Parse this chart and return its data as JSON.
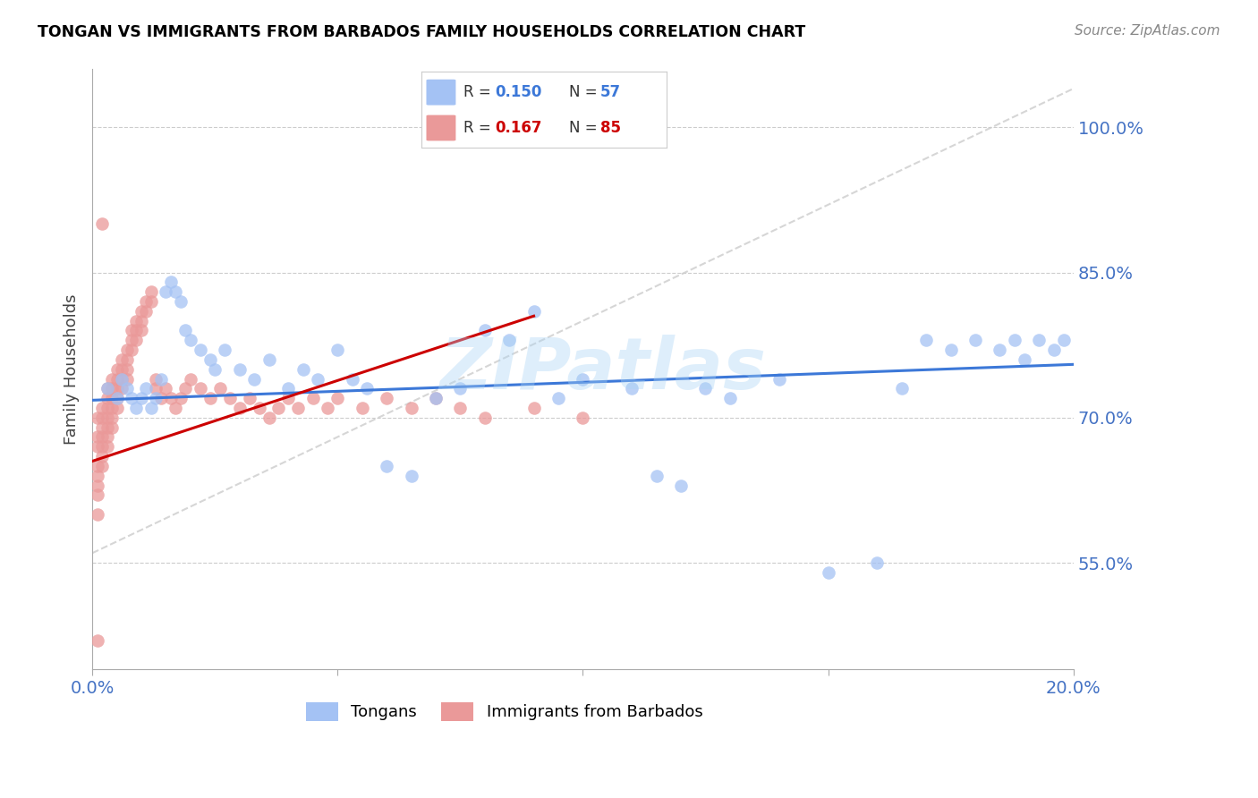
{
  "title": "TONGAN VS IMMIGRANTS FROM BARBADOS FAMILY HOUSEHOLDS CORRELATION CHART",
  "source": "Source: ZipAtlas.com",
  "ylabel": "Family Households",
  "ytick_labels": [
    "55.0%",
    "70.0%",
    "85.0%",
    "100.0%"
  ],
  "ytick_values": [
    0.55,
    0.7,
    0.85,
    1.0
  ],
  "color_blue": "#a4c2f4",
  "color_pink": "#ea9999",
  "color_blue_line": "#3c78d8",
  "color_pink_line": "#cc0000",
  "color_diag_line": "#cccccc",
  "color_axis_text": "#4472c4",
  "color_title": "#000000",
  "watermark": "ZIPatlas",
  "background_color": "#ffffff",
  "xmin": 0.0,
  "xmax": 0.2,
  "ymin": 0.44,
  "ymax": 1.06,
  "blue_line_x": [
    0.0,
    0.2
  ],
  "blue_line_y": [
    0.718,
    0.755
  ],
  "pink_line_x": [
    0.0,
    0.09
  ],
  "pink_line_y": [
    0.655,
    0.805
  ],
  "diag_line_x": [
    0.0,
    0.2
  ],
  "diag_line_y": [
    0.56,
    1.04
  ]
}
